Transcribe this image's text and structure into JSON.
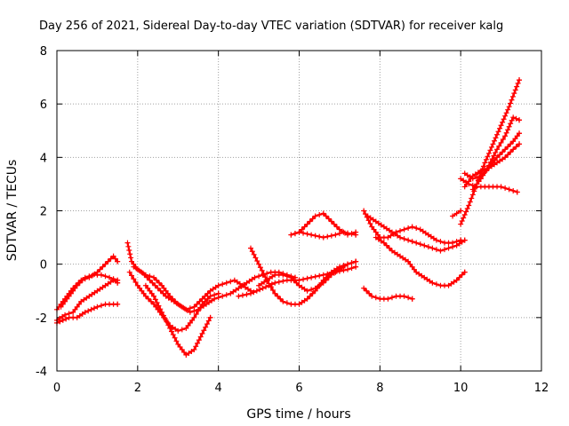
{
  "chart_data": {
    "type": "scatter",
    "title": "Day 256 of 2021, Sidereal Day-to-day VTEC variation (SDTVAR) for receiver kalg",
    "xlabel": "GPS time / hours",
    "ylabel": "SDTVAR / TECUs",
    "xlim": [
      0,
      12
    ],
    "ylim": [
      -4,
      8
    ],
    "xticks": [
      "0",
      "2",
      "4",
      "6",
      "8",
      "10",
      "12"
    ],
    "yticks": [
      "-4",
      "-2",
      "0",
      "2",
      "4",
      "6",
      "8"
    ],
    "grid": true,
    "marker": "+",
    "marker_color": "#ff0000",
    "series": [
      {
        "x": [
          0.0,
          0.2,
          0.4,
          0.6,
          0.8,
          1.0,
          1.2,
          1.4,
          1.5
        ],
        "y": [
          -1.7,
          -1.3,
          -0.9,
          -0.6,
          -0.5,
          -0.3,
          0.0,
          0.3,
          0.1
        ]
      },
      {
        "x": [
          0.0,
          0.2,
          0.4,
          0.6,
          0.8,
          1.0,
          1.2,
          1.4,
          1.5
        ],
        "y": [
          -2.1,
          -1.9,
          -1.8,
          -1.4,
          -1.2,
          -1.0,
          -0.8,
          -0.6,
          -0.7
        ]
      },
      {
        "x": [
          0.0,
          0.3,
          0.5,
          0.7,
          1.0,
          1.2,
          1.5
        ],
        "y": [
          -2.2,
          -2.0,
          -2.0,
          -1.8,
          -1.6,
          -1.5,
          -1.5
        ]
      },
      {
        "x": [
          0.1,
          0.3,
          0.5,
          0.7,
          0.9,
          1.1,
          1.3,
          1.5
        ],
        "y": [
          -1.6,
          -1.2,
          -0.8,
          -0.5,
          -0.4,
          -0.4,
          -0.5,
          -0.6
        ]
      },
      {
        "x": [
          1.75,
          1.85,
          2.0,
          2.2,
          2.4,
          2.6,
          2.8,
          3.0,
          3.2,
          3.4,
          3.6,
          3.8,
          4.0,
          4.2,
          4.4,
          4.6,
          4.8
        ],
        "y": [
          0.8,
          0.1,
          -0.2,
          -0.4,
          -0.5,
          -0.8,
          -1.2,
          -1.5,
          -1.7,
          -1.6,
          -1.3,
          -1.0,
          -0.8,
          -0.7,
          -0.6,
          -0.8,
          -1.0
        ]
      },
      {
        "x": [
          1.8,
          2.0,
          2.2,
          2.4,
          2.6,
          2.8,
          3.0,
          3.2,
          3.4,
          3.6,
          3.8,
          4.0
        ],
        "y": [
          -0.3,
          -0.8,
          -1.2,
          -1.5,
          -1.9,
          -2.3,
          -2.5,
          -2.4,
          -2.0,
          -1.5,
          -1.2,
          -1.1
        ]
      },
      {
        "x": [
          2.2,
          2.4,
          2.6,
          2.8,
          3.0,
          3.2,
          3.4,
          3.6,
          3.8
        ],
        "y": [
          -0.8,
          -1.2,
          -1.8,
          -2.4,
          -3.0,
          -3.4,
          -3.2,
          -2.6,
          -2.0
        ]
      },
      {
        "x": [
          1.9,
          2.1,
          2.3,
          2.5,
          2.7,
          2.9,
          3.1,
          3.3,
          3.5,
          3.7,
          3.9,
          4.1,
          4.3,
          4.5,
          4.7,
          4.9,
          5.1,
          5.3,
          5.5,
          5.7,
          5.9
        ],
        "y": [
          -0.1,
          -0.3,
          -0.6,
          -0.9,
          -1.2,
          -1.4,
          -1.6,
          -1.8,
          -1.7,
          -1.5,
          -1.3,
          -1.2,
          -1.1,
          -0.9,
          -0.7,
          -0.5,
          -0.4,
          -0.3,
          -0.3,
          -0.4,
          -0.5
        ]
      },
      {
        "x": [
          4.8,
          5.0,
          5.2,
          5.4,
          5.6,
          5.8,
          6.0,
          6.2,
          6.4,
          6.6,
          6.8,
          7.0,
          7.2,
          7.4
        ],
        "y": [
          0.6,
          0.0,
          -0.6,
          -1.1,
          -1.4,
          -1.5,
          -1.5,
          -1.3,
          -1.0,
          -0.6,
          -0.3,
          -0.1,
          0.0,
          0.1
        ]
      },
      {
        "x": [
          5.0,
          5.2,
          5.4,
          5.6,
          5.8,
          6.0,
          6.2,
          6.4,
          6.6,
          6.8,
          7.0,
          7.2,
          7.4
        ],
        "y": [
          -0.8,
          -0.6,
          -0.4,
          -0.4,
          -0.5,
          -0.8,
          -1.0,
          -0.9,
          -0.7,
          -0.4,
          -0.2,
          0.0,
          0.1
        ]
      },
      {
        "x": [
          4.5,
          4.8,
          5.1,
          5.4,
          5.7,
          6.0,
          6.3,
          6.6,
          6.9,
          7.2,
          7.4
        ],
        "y": [
          -1.2,
          -1.1,
          -0.9,
          -0.7,
          -0.6,
          -0.6,
          -0.5,
          -0.4,
          -0.3,
          -0.2,
          -0.1
        ]
      },
      {
        "x": [
          5.8,
          6.0,
          6.2,
          6.4,
          6.6,
          6.8,
          7.0,
          7.2,
          7.4
        ],
        "y": [
          1.1,
          1.2,
          1.5,
          1.8,
          1.9,
          1.6,
          1.3,
          1.1,
          1.2
        ]
      },
      {
        "x": [
          5.8,
          6.0,
          6.3,
          6.6,
          6.9,
          7.1,
          7.4
        ],
        "y": [
          1.1,
          1.2,
          1.1,
          1.0,
          1.1,
          1.2,
          1.1
        ]
      },
      {
        "x": [
          7.6,
          7.8,
          8.0,
          8.2,
          8.4,
          8.6,
          8.8,
          9.0,
          9.2,
          9.4,
          9.6,
          9.8,
          10.0
        ],
        "y": [
          2.0,
          1.4,
          1.0,
          1.0,
          1.2,
          1.3,
          1.4,
          1.3,
          1.1,
          0.9,
          0.8,
          0.8,
          0.9
        ]
      },
      {
        "x": [
          7.7,
          7.9,
          8.1,
          8.3,
          8.5,
          8.7,
          8.9,
          9.1,
          9.3,
          9.5,
          9.7,
          9.9,
          10.1
        ],
        "y": [
          1.8,
          1.6,
          1.4,
          1.2,
          1.0,
          0.9,
          0.8,
          0.7,
          0.6,
          0.5,
          0.6,
          0.7,
          0.9
        ]
      },
      {
        "x": [
          7.9,
          8.1,
          8.3,
          8.5,
          8.7,
          8.9,
          9.1,
          9.3,
          9.5,
          9.7,
          9.9,
          10.1
        ],
        "y": [
          1.0,
          0.8,
          0.5,
          0.3,
          0.1,
          -0.3,
          -0.5,
          -0.7,
          -0.8,
          -0.8,
          -0.6,
          -0.3
        ]
      },
      {
        "x": [
          7.6,
          7.8,
          8.0,
          8.2,
          8.4,
          8.6,
          8.8
        ],
        "y": [
          -0.9,
          -1.2,
          -1.3,
          -1.3,
          -1.2,
          -1.2,
          -1.3
        ]
      },
      {
        "x": [
          9.8,
          9.9,
          10.0
        ],
        "y": [
          1.8,
          1.9,
          2.0
        ]
      },
      {
        "x": [
          10.0,
          10.2,
          10.4,
          10.6,
          10.8,
          11.0,
          11.2,
          11.4
        ],
        "y": [
          3.2,
          3.0,
          2.9,
          2.9,
          2.9,
          2.9,
          2.8,
          2.7
        ]
      },
      {
        "x": [
          10.0,
          10.2,
          10.4,
          10.6,
          10.8,
          11.0,
          11.2,
          11.45
        ],
        "y": [
          1.5,
          2.2,
          3.0,
          3.8,
          4.5,
          5.2,
          5.9,
          6.9
        ]
      },
      {
        "x": [
          10.1,
          10.3,
          10.5,
          10.7,
          10.9,
          11.1,
          11.3,
          11.45
        ],
        "y": [
          3.4,
          3.2,
          3.3,
          3.6,
          4.0,
          4.3,
          4.6,
          4.9
        ]
      },
      {
        "x": [
          10.3,
          10.5,
          10.7,
          10.9,
          11.1,
          11.3,
          11.45
        ],
        "y": [
          2.8,
          3.2,
          3.7,
          4.3,
          4.8,
          5.5,
          5.4
        ]
      },
      {
        "x": [
          10.1,
          10.3,
          10.5,
          10.7,
          10.9,
          11.1,
          11.3,
          11.45
        ],
        "y": [
          2.9,
          3.3,
          3.5,
          3.6,
          3.8,
          4.0,
          4.3,
          4.5
        ]
      }
    ]
  }
}
